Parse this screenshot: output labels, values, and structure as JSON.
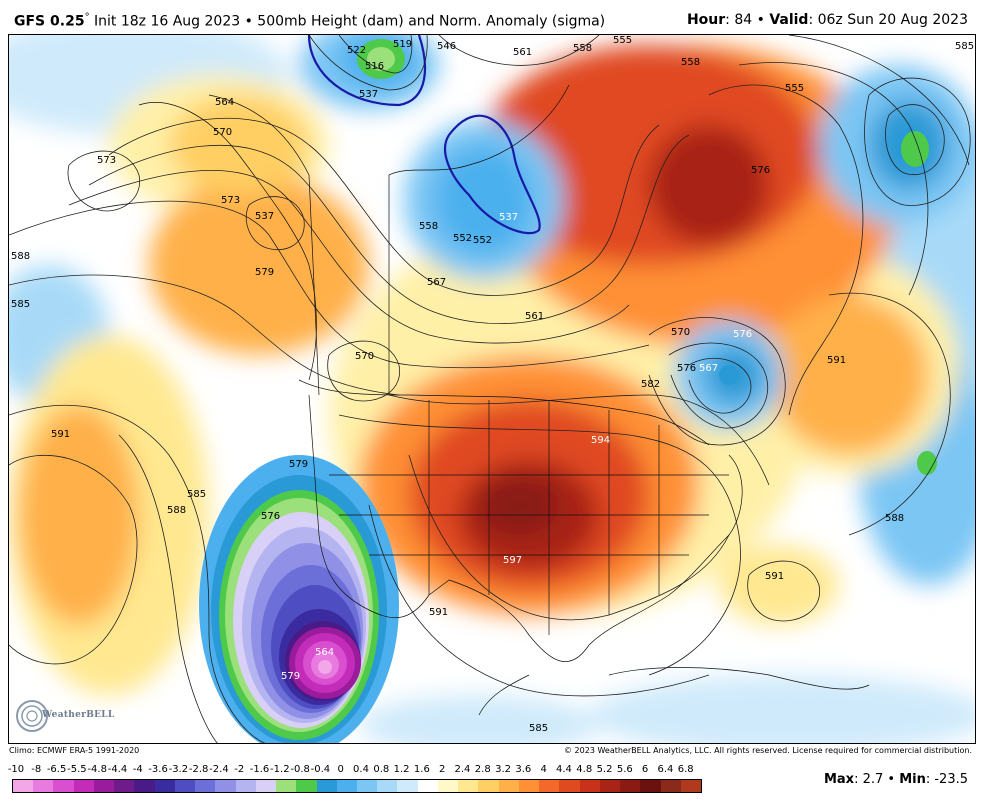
{
  "header": {
    "model": "GFS 0.25",
    "degree_symbol": "°",
    "init_text": " Init 18z 16 Aug 2023 • 500mb Height (dam) and Norm. Anomaly (sigma)",
    "hour_label": "Hour",
    "hour_value": ": 84 • ",
    "valid_label": "Valid",
    "valid_value": ": 06z Sun 20 Aug 2023"
  },
  "footer": {
    "climo": "Climo: ECMWF ERA-5 1991-2020",
    "copyright": "© 2023 WeatherBELL Analytics, LLC. All rights reserved. License required for commercial distribution.",
    "logo_text": "WeatherBELL",
    "max_label": "Max",
    "max_value": ": 2.7 • ",
    "min_label": "Min",
    "min_value": ": -23.5"
  },
  "colorbar": {
    "labels": [
      "-10",
      "-8",
      "-6.5",
      "-5.5",
      "-4.8",
      "-4.4",
      "-4",
      "-3.6",
      "-3.2",
      "-2.8",
      "-2.4",
      "-2",
      "-1.6",
      "-1.2",
      "-0.8",
      "-0.4",
      "0",
      "0.4",
      "0.8",
      "1.2",
      "1.6",
      "2",
      "2.4",
      "2.8",
      "3.2",
      "3.6",
      "4",
      "4.4",
      "4.8",
      "5.2",
      "5.6",
      "6",
      "6.4",
      "6.8"
    ],
    "colors": [
      "#f3a6e8",
      "#e77be0",
      "#d94fcf",
      "#c22cb8",
      "#9a1b9c",
      "#6f1b8c",
      "#4a1a86",
      "#3a2ba0",
      "#4e4dc2",
      "#6d6fd8",
      "#9090e6",
      "#b4b4f0",
      "#d8d0f6",
      "#9be07a",
      "#4ec94a",
      "#2a9ad6",
      "#4cb0ee",
      "#7cc6f4",
      "#a8daf8",
      "#cfeafb",
      "#ffffff",
      "#fff8c8",
      "#ffe890",
      "#ffcf64",
      "#ffb048",
      "#ff9036",
      "#f4682a",
      "#e04a20",
      "#c8321a",
      "#a82416",
      "#8a1a12",
      "#6c120e",
      "#8a2a1a",
      "#b13a1e"
    ]
  },
  "contour_labels": [
    "537",
    "537",
    "522",
    "516",
    "519",
    "546",
    "561",
    "558",
    "555",
    "558",
    "555",
    "585",
    "564",
    "570",
    "573",
    "573",
    "537",
    "558",
    "552",
    "567",
    "561",
    "576",
    "579",
    "588",
    "585",
    "570",
    "570",
    "576",
    "591",
    "591",
    "585",
    "588",
    "594",
    "597",
    "576",
    "579",
    "564",
    "579",
    "591",
    "588",
    "591",
    "585",
    "588",
    "576",
    "567",
    "582",
    "552"
  ]
}
